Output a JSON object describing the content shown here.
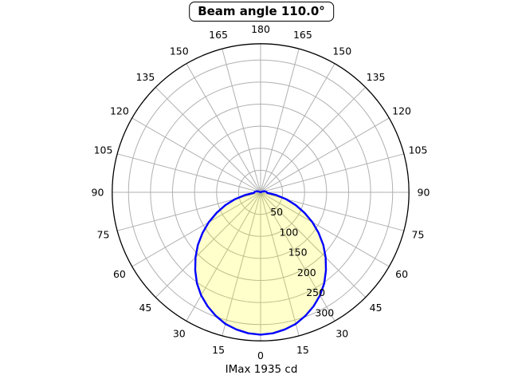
{
  "title": "Beam angle 110.0°",
  "footer": "IMax 1935 cd",
  "colors": {
    "curve": "#0000ff",
    "curve_fill": "#ffff00",
    "curve_fill_opacity": 0.2,
    "grid": "#b0b0b0",
    "spine": "#000000",
    "text": "#000000",
    "background": "#ffffff",
    "title_box_border": "#000000"
  },
  "chart_data": {
    "type": "polar-line",
    "title": "Beam angle 110.0°",
    "xlabel": "IMax 1935 cd",
    "beam_angle_deg": 110.0,
    "imax_cd": 1935,
    "theta_zero_location": "bottom",
    "theta_tick_step_deg": 15,
    "theta_ticks_deg": [
      0,
      15,
      30,
      45,
      60,
      75,
      90,
      105,
      120,
      135,
      150,
      165,
      180
    ],
    "theta_labels_mirrored_both_sides": true,
    "r_ticks": [
      50,
      100,
      150,
      200,
      250,
      300
    ],
    "r_max": 337,
    "r_label_ray_deg": 24,
    "grid": true,
    "legend": "none",
    "series": [
      {
        "name": "luminous-intensity-polar-curve",
        "symmetric_about_0deg": true,
        "peak_value": 322.5,
        "angles_deg": [
          0,
          5,
          10,
          15,
          20,
          25,
          30,
          35,
          40,
          45,
          50,
          55,
          60,
          65,
          70,
          75,
          80,
          85,
          90,
          95,
          100,
          105,
          110,
          115,
          120
        ],
        "values": [
          323,
          321,
          316,
          309,
          298,
          285,
          270,
          252,
          231,
          209,
          186,
          161,
          136,
          110,
          85,
          60,
          36,
          15,
          14,
          13,
          11,
          9,
          6,
          3,
          0
        ]
      }
    ]
  }
}
